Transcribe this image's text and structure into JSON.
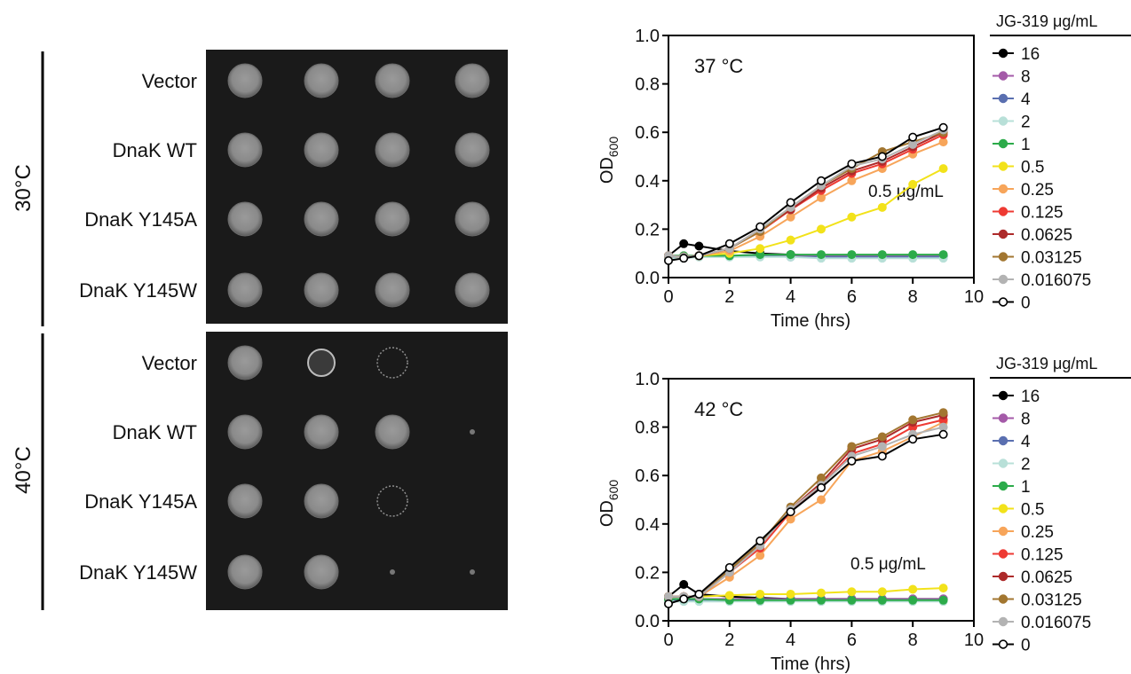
{
  "plates": {
    "panels": [
      {
        "condition": "30°C",
        "rows": [
          {
            "label": "Vector",
            "spots": [
              "normal",
              "normal",
              "normal",
              "normal"
            ]
          },
          {
            "label": "DnaK WT",
            "spots": [
              "normal",
              "normal",
              "normal",
              "normal"
            ]
          },
          {
            "label": "DnaK Y145A",
            "spots": [
              "normal",
              "normal",
              "normal",
              "normal"
            ]
          },
          {
            "label": "DnaK Y145W",
            "spots": [
              "normal",
              "normal",
              "normal",
              "normal"
            ]
          }
        ]
      },
      {
        "condition": "40°C",
        "rows": [
          {
            "label": "Vector",
            "spots": [
              "normal",
              "faint",
              "ring",
              "none"
            ]
          },
          {
            "label": "DnaK WT",
            "spots": [
              "normal",
              "normal",
              "normal",
              "trace"
            ]
          },
          {
            "label": "DnaK Y145A",
            "spots": [
              "normal",
              "normal",
              "ring",
              "none"
            ]
          },
          {
            "label": "DnaK Y145W",
            "spots": [
              "normal",
              "normal",
              "trace",
              "trace"
            ]
          }
        ]
      }
    ]
  },
  "legend_entries": [
    {
      "label": "16",
      "color": "#000000",
      "fill": "#000000"
    },
    {
      "label": "8",
      "color": "#a45aa8",
      "fill": "#a45aa8"
    },
    {
      "label": "4",
      "color": "#5a6fb0",
      "fill": "#5a6fb0"
    },
    {
      "label": "2",
      "color": "#b8e0d8",
      "fill": "#b8e0d8"
    },
    {
      "label": "1",
      "color": "#2cab4a",
      "fill": "#2cab4a"
    },
    {
      "label": "0.5",
      "color": "#f2e21a",
      "fill": "#f2e21a"
    },
    {
      "label": "0.25",
      "color": "#f7a55a",
      "fill": "#f7a55a"
    },
    {
      "label": "0.125",
      "color": "#ee3a33",
      "fill": "#ee3a33"
    },
    {
      "label": "0.0625",
      "color": "#ad2a2a",
      "fill": "#ad2a2a"
    },
    {
      "label": "0.03125",
      "color": "#a27630",
      "fill": "#a27630"
    },
    {
      "label": "0.016075",
      "color": "#b3b3b3",
      "fill": "#b3b3b3"
    },
    {
      "label": "0",
      "color": "#000000",
      "fill": "#ffffff"
    }
  ],
  "chart_data": [
    {
      "type": "line",
      "annotation": "37 °C",
      "inline_label": "0.5 μg/mL",
      "legend_title": "JG-319 μg/mL",
      "xlabel": "Time (hrs)",
      "ylabel_main": "OD",
      "ylabel_sub": "600",
      "xlim": [
        0,
        10
      ],
      "ylim": [
        0,
        1.0
      ],
      "xticks": [
        0,
        2,
        4,
        6,
        8,
        10
      ],
      "yticks": [
        0.0,
        0.2,
        0.4,
        0.6,
        0.8,
        1.0
      ],
      "ytick_labels": [
        "0.0",
        "0.2",
        "0.4",
        "0.6",
        "0.8",
        "1.0"
      ],
      "x": [
        0,
        0.5,
        1,
        2,
        3,
        4,
        5,
        6,
        7,
        8,
        9
      ],
      "series": [
        {
          "name": "16",
          "values": [
            0.09,
            0.14,
            0.13,
            0.11,
            0.1,
            0.095,
            0.09,
            0.09,
            0.09,
            0.09,
            0.09
          ]
        },
        {
          "name": "8",
          "values": [
            0.09,
            0.09,
            0.09,
            0.09,
            0.09,
            0.09,
            0.09,
            0.09,
            0.09,
            0.09,
            0.09
          ]
        },
        {
          "name": "4",
          "values": [
            0.08,
            0.085,
            0.09,
            0.09,
            0.09,
            0.085,
            0.085,
            0.085,
            0.085,
            0.085,
            0.085
          ]
        },
        {
          "name": "2",
          "values": [
            0.08,
            0.08,
            0.085,
            0.085,
            0.085,
            0.085,
            0.08,
            0.08,
            0.08,
            0.08,
            0.08
          ]
        },
        {
          "name": "1",
          "values": [
            0.09,
            0.09,
            0.09,
            0.09,
            0.095,
            0.095,
            0.095,
            0.095,
            0.095,
            0.095,
            0.095
          ]
        },
        {
          "name": "0.5",
          "values": [
            0.09,
            0.085,
            0.09,
            0.1,
            0.12,
            0.155,
            0.2,
            0.25,
            0.29,
            0.385,
            0.45
          ]
        },
        {
          "name": "0.25",
          "values": [
            0.09,
            0.085,
            0.09,
            0.11,
            0.17,
            0.25,
            0.33,
            0.4,
            0.45,
            0.51,
            0.56
          ]
        },
        {
          "name": "0.125",
          "values": [
            0.09,
            0.085,
            0.09,
            0.12,
            0.19,
            0.28,
            0.36,
            0.43,
            0.47,
            0.53,
            0.59
          ]
        },
        {
          "name": "0.0625",
          "values": [
            0.09,
            0.085,
            0.09,
            0.12,
            0.2,
            0.28,
            0.37,
            0.44,
            0.48,
            0.54,
            0.6
          ]
        },
        {
          "name": "0.03125",
          "values": [
            0.09,
            0.085,
            0.09,
            0.12,
            0.19,
            0.29,
            0.38,
            0.45,
            0.52,
            0.56,
            0.6
          ]
        },
        {
          "name": "0.016075",
          "values": [
            0.09,
            0.085,
            0.09,
            0.12,
            0.2,
            0.29,
            0.38,
            0.46,
            0.49,
            0.55,
            0.61
          ]
        },
        {
          "name": "0",
          "values": [
            0.07,
            0.08,
            0.09,
            0.14,
            0.21,
            0.31,
            0.4,
            0.47,
            0.5,
            0.58,
            0.62
          ]
        }
      ]
    },
    {
      "type": "line",
      "annotation": "42 °C",
      "inline_label": "0.5 μg/mL",
      "legend_title": "JG-319  μg/mL",
      "xlabel": "Time (hrs)",
      "ylabel_main": "OD",
      "ylabel_sub": "600",
      "xlim": [
        0,
        10
      ],
      "ylim": [
        0,
        1.0
      ],
      "xticks": [
        0,
        2,
        4,
        6,
        8,
        10
      ],
      "yticks": [
        0.0,
        0.2,
        0.4,
        0.6,
        0.8,
        1.0
      ],
      "ytick_labels": [
        "0.0",
        "0.2",
        "0.4",
        "0.6",
        "0.8",
        "1.0"
      ],
      "x": [
        0,
        0.5,
        1,
        2,
        3,
        4,
        5,
        6,
        7,
        8,
        9
      ],
      "series": [
        {
          "name": "16",
          "values": [
            0.1,
            0.15,
            0.11,
            0.1,
            0.095,
            0.09,
            0.09,
            0.09,
            0.09,
            0.09,
            0.09
          ]
        },
        {
          "name": "8",
          "values": [
            0.09,
            0.09,
            0.09,
            0.09,
            0.09,
            0.09,
            0.09,
            0.09,
            0.09,
            0.09,
            0.09
          ]
        },
        {
          "name": "4",
          "values": [
            0.085,
            0.085,
            0.085,
            0.085,
            0.085,
            0.085,
            0.085,
            0.085,
            0.085,
            0.085,
            0.085
          ]
        },
        {
          "name": "2",
          "values": [
            0.08,
            0.08,
            0.08,
            0.08,
            0.08,
            0.08,
            0.08,
            0.08,
            0.08,
            0.08,
            0.08
          ]
        },
        {
          "name": "1",
          "values": [
            0.09,
            0.09,
            0.09,
            0.085,
            0.085,
            0.085,
            0.085,
            0.085,
            0.085,
            0.085,
            0.085
          ]
        },
        {
          "name": "0.5",
          "values": [
            0.1,
            0.1,
            0.1,
            0.105,
            0.11,
            0.11,
            0.115,
            0.12,
            0.12,
            0.13,
            0.135
          ]
        },
        {
          "name": "0.25",
          "values": [
            0.1,
            0.1,
            0.1,
            0.18,
            0.27,
            0.42,
            0.5,
            0.66,
            0.7,
            0.76,
            0.82
          ]
        },
        {
          "name": "0.125",
          "values": [
            0.1,
            0.1,
            0.1,
            0.2,
            0.3,
            0.45,
            0.56,
            0.69,
            0.73,
            0.8,
            0.83
          ]
        },
        {
          "name": "0.0625",
          "values": [
            0.1,
            0.1,
            0.1,
            0.21,
            0.31,
            0.46,
            0.57,
            0.71,
            0.75,
            0.82,
            0.85
          ]
        },
        {
          "name": "0.03125",
          "values": [
            0.1,
            0.1,
            0.1,
            0.21,
            0.32,
            0.47,
            0.59,
            0.72,
            0.76,
            0.83,
            0.86
          ]
        },
        {
          "name": "0.016075",
          "values": [
            0.1,
            0.1,
            0.1,
            0.2,
            0.31,
            0.46,
            0.56,
            0.68,
            0.72,
            0.77,
            0.8
          ]
        },
        {
          "name": "0",
          "values": [
            0.07,
            0.09,
            0.11,
            0.22,
            0.33,
            0.45,
            0.55,
            0.66,
            0.68,
            0.75,
            0.77
          ]
        }
      ]
    }
  ]
}
